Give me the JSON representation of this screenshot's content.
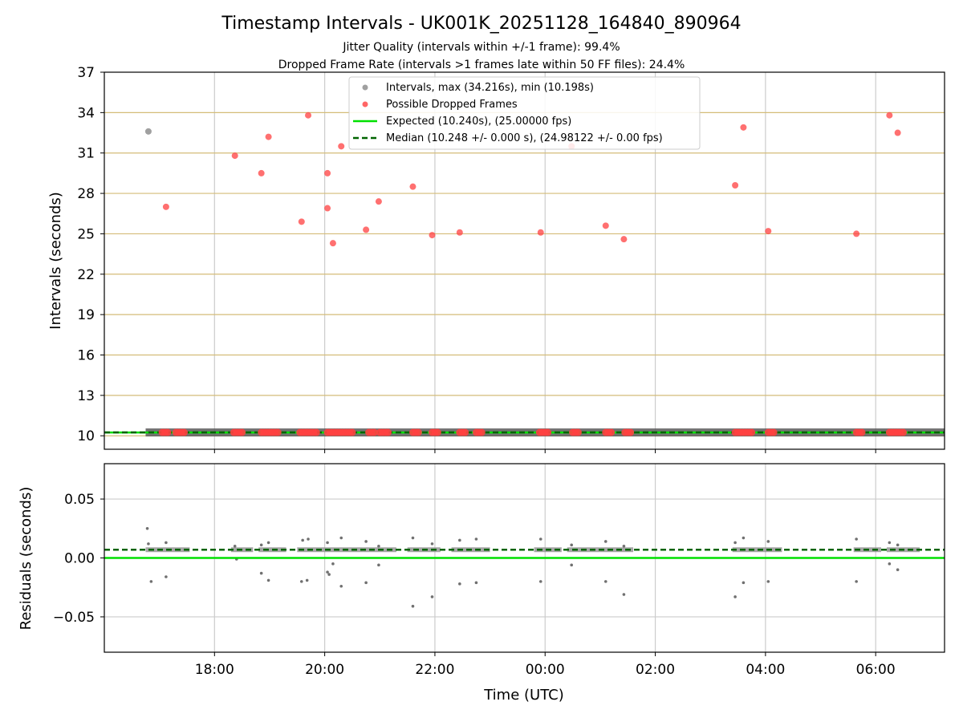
{
  "title": "Timestamp Intervals - UK001K_20251128_164840_890964",
  "subtitle_1": "Jitter Quality (intervals within +/-1 frame): 99.4%",
  "subtitle_2": "Dropped Frame Rate (intervals >1 frames late within 50 FF files): 24.4%",
  "colors": {
    "intervals": "#a0a0a0",
    "dropped": "#ff4040",
    "expected": "#00e000",
    "median": "#006400",
    "hgrid": "#d4bc78",
    "vgrid": "#cccccc",
    "residual_points": "#707070"
  },
  "chart_data": [
    {
      "type": "scatter",
      "xlabel": "",
      "ylabel": "Intervals (seconds)",
      "xlim_hours": [
        16.0,
        31.25
      ],
      "ylim": [
        9,
        37
      ],
      "yticks": [
        10,
        13,
        16,
        19,
        22,
        25,
        28,
        31,
        34,
        37
      ],
      "ytick_labels": [
        "10",
        "13",
        "16",
        "19",
        "22",
        "25",
        "28",
        "31",
        "34",
        "37"
      ],
      "xticks_hours": [
        18,
        20,
        22,
        24,
        26,
        28,
        30
      ],
      "grid": true,
      "legend_position": "top-center",
      "legend": {
        "intervals": "Intervals, max (34.216s), min (10.198s)",
        "dropped": "Possible Dropped Frames",
        "expected": "Expected (10.240s), (25.00000 fps)",
        "median": "Median (10.248 +/- 0.000 s), (24.98122 +/- 0.00 fps)"
      },
      "expected_value": 10.24,
      "median_value": 10.248,
      "baseline_band": [
        16.75,
        31.25
      ],
      "series": [
        {
          "name": "Intervals",
          "x_hours": [
            16.8
          ],
          "y": [
            32.6
          ]
        },
        {
          "name": "Possible Dropped Frames",
          "x_hours": [
            17.12,
            18.37,
            18.85,
            18.98,
            19.58,
            19.7,
            20.05,
            20.05,
            20.15,
            20.3,
            20.75,
            20.98,
            21.6,
            21.95,
            22.45,
            23.92,
            24.48,
            25.1,
            25.43,
            27.45,
            27.6,
            28.05,
            29.65,
            30.25,
            30.4
          ],
          "y": [
            27.0,
            30.8,
            29.5,
            32.2,
            25.9,
            33.8,
            29.5,
            26.9,
            24.3,
            31.5,
            25.3,
            27.4,
            28.5,
            24.9,
            25.1,
            25.1,
            31.5,
            25.6,
            24.6,
            28.6,
            32.9,
            25.2,
            25.0,
            33.8,
            32.5
          ]
        },
        {
          "name": "Possible Dropped Frames (near baseline)",
          "x_hours": [
            17.05,
            17.1,
            17.15,
            17.3,
            17.35,
            17.4,
            17.45,
            18.35,
            18.4,
            18.45,
            18.5,
            18.85,
            18.9,
            18.95,
            19.0,
            19.05,
            19.1,
            19.15,
            19.55,
            19.6,
            19.65,
            19.7,
            19.75,
            19.8,
            19.85,
            20.05,
            20.1,
            20.15,
            20.2,
            20.25,
            20.3,
            20.35,
            20.4,
            20.45,
            20.5,
            20.8,
            20.85,
            20.9,
            21.0,
            21.05,
            21.1,
            21.15,
            21.6,
            21.65,
            21.7,
            21.95,
            22.0,
            22.05,
            22.45,
            22.5,
            22.55,
            22.75,
            22.8,
            22.85,
            23.9,
            23.95,
            24.0,
            24.05,
            24.5,
            24.55,
            24.6,
            25.1,
            25.15,
            25.2,
            25.45,
            25.5,
            25.55,
            27.45,
            27.5,
            27.55,
            27.6,
            27.65,
            27.7,
            27.75,
            28.05,
            28.1,
            28.15,
            29.65,
            29.7,
            29.75,
            30.25,
            30.3,
            30.35,
            30.4,
            30.45,
            30.5
          ],
          "y_value": 10.25
        }
      ]
    },
    {
      "type": "scatter",
      "xlabel": "Time (UTC)",
      "ylabel": "Residuals (seconds)",
      "xlim_hours": [
        16.0,
        31.25
      ],
      "ylim": [
        -0.08,
        0.08
      ],
      "yticks": [
        0.05,
        0.0,
        -0.05
      ],
      "ytick_labels": [
        "0.05",
        "0.00",
        "−0.05"
      ],
      "xticks_hours": [
        18,
        20,
        22,
        24,
        26,
        28,
        30
      ],
      "xtick_labels": [
        "18:00",
        "20:00",
        "22:00",
        "00:00",
        "02:00",
        "04:00",
        "06:00"
      ],
      "grid": true,
      "expected_value": 0.0,
      "median_value": 0.007,
      "band_segments_hours": [
        [
          16.75,
          17.55
        ],
        [
          18.3,
          18.7
        ],
        [
          18.8,
          19.3
        ],
        [
          19.5,
          20.0
        ],
        [
          20.0,
          20.7
        ],
        [
          20.7,
          21.3
        ],
        [
          21.5,
          22.1
        ],
        [
          22.3,
          23.0
        ],
        [
          23.8,
          24.3
        ],
        [
          24.4,
          25.0
        ],
        [
          25.0,
          25.6
        ],
        [
          27.4,
          28.3
        ],
        [
          29.6,
          30.1
        ],
        [
          30.2,
          30.8
        ]
      ],
      "outliers": [
        {
          "x": 16.78,
          "y": 0.025
        },
        {
          "x": 16.8,
          "y": 0.012
        },
        {
          "x": 16.85,
          "y": -0.02
        },
        {
          "x": 17.12,
          "y": -0.016
        },
        {
          "x": 17.12,
          "y": 0.013
        },
        {
          "x": 18.37,
          "y": 0.01
        },
        {
          "x": 18.4,
          "y": -0.001
        },
        {
          "x": 18.85,
          "y": -0.013
        },
        {
          "x": 18.98,
          "y": -0.019
        },
        {
          "x": 18.98,
          "y": 0.013
        },
        {
          "x": 18.85,
          "y": 0.011
        },
        {
          "x": 19.58,
          "y": -0.02
        },
        {
          "x": 19.68,
          "y": -0.019
        },
        {
          "x": 19.6,
          "y": 0.015
        },
        {
          "x": 19.7,
          "y": 0.016
        },
        {
          "x": 20.05,
          "y": -0.012
        },
        {
          "x": 20.08,
          "y": -0.014
        },
        {
          "x": 20.15,
          "y": -0.005
        },
        {
          "x": 20.3,
          "y": -0.024
        },
        {
          "x": 20.3,
          "y": 0.017
        },
        {
          "x": 20.05,
          "y": 0.013
        },
        {
          "x": 20.75,
          "y": -0.021
        },
        {
          "x": 20.75,
          "y": 0.014
        },
        {
          "x": 20.98,
          "y": -0.006
        },
        {
          "x": 20.98,
          "y": 0.01
        },
        {
          "x": 21.6,
          "y": -0.041
        },
        {
          "x": 21.6,
          "y": 0.017
        },
        {
          "x": 21.95,
          "y": -0.033
        },
        {
          "x": 21.95,
          "y": 0.012
        },
        {
          "x": 22.45,
          "y": -0.022
        },
        {
          "x": 22.45,
          "y": 0.015
        },
        {
          "x": 22.75,
          "y": -0.021
        },
        {
          "x": 22.75,
          "y": 0.016
        },
        {
          "x": 23.92,
          "y": -0.02
        },
        {
          "x": 23.92,
          "y": 0.016
        },
        {
          "x": 24.48,
          "y": -0.006
        },
        {
          "x": 24.48,
          "y": 0.011
        },
        {
          "x": 25.1,
          "y": -0.02
        },
        {
          "x": 25.1,
          "y": 0.014
        },
        {
          "x": 25.43,
          "y": -0.031
        },
        {
          "x": 25.43,
          "y": 0.01
        },
        {
          "x": 27.45,
          "y": -0.033
        },
        {
          "x": 27.45,
          "y": 0.013
        },
        {
          "x": 27.6,
          "y": -0.021
        },
        {
          "x": 27.6,
          "y": 0.017
        },
        {
          "x": 28.05,
          "y": -0.02
        },
        {
          "x": 28.05,
          "y": 0.014
        },
        {
          "x": 29.65,
          "y": -0.02
        },
        {
          "x": 29.65,
          "y": 0.016
        },
        {
          "x": 30.25,
          "y": -0.005
        },
        {
          "x": 30.4,
          "y": -0.01
        },
        {
          "x": 30.25,
          "y": 0.013
        },
        {
          "x": 30.4,
          "y": 0.011
        }
      ]
    }
  ]
}
